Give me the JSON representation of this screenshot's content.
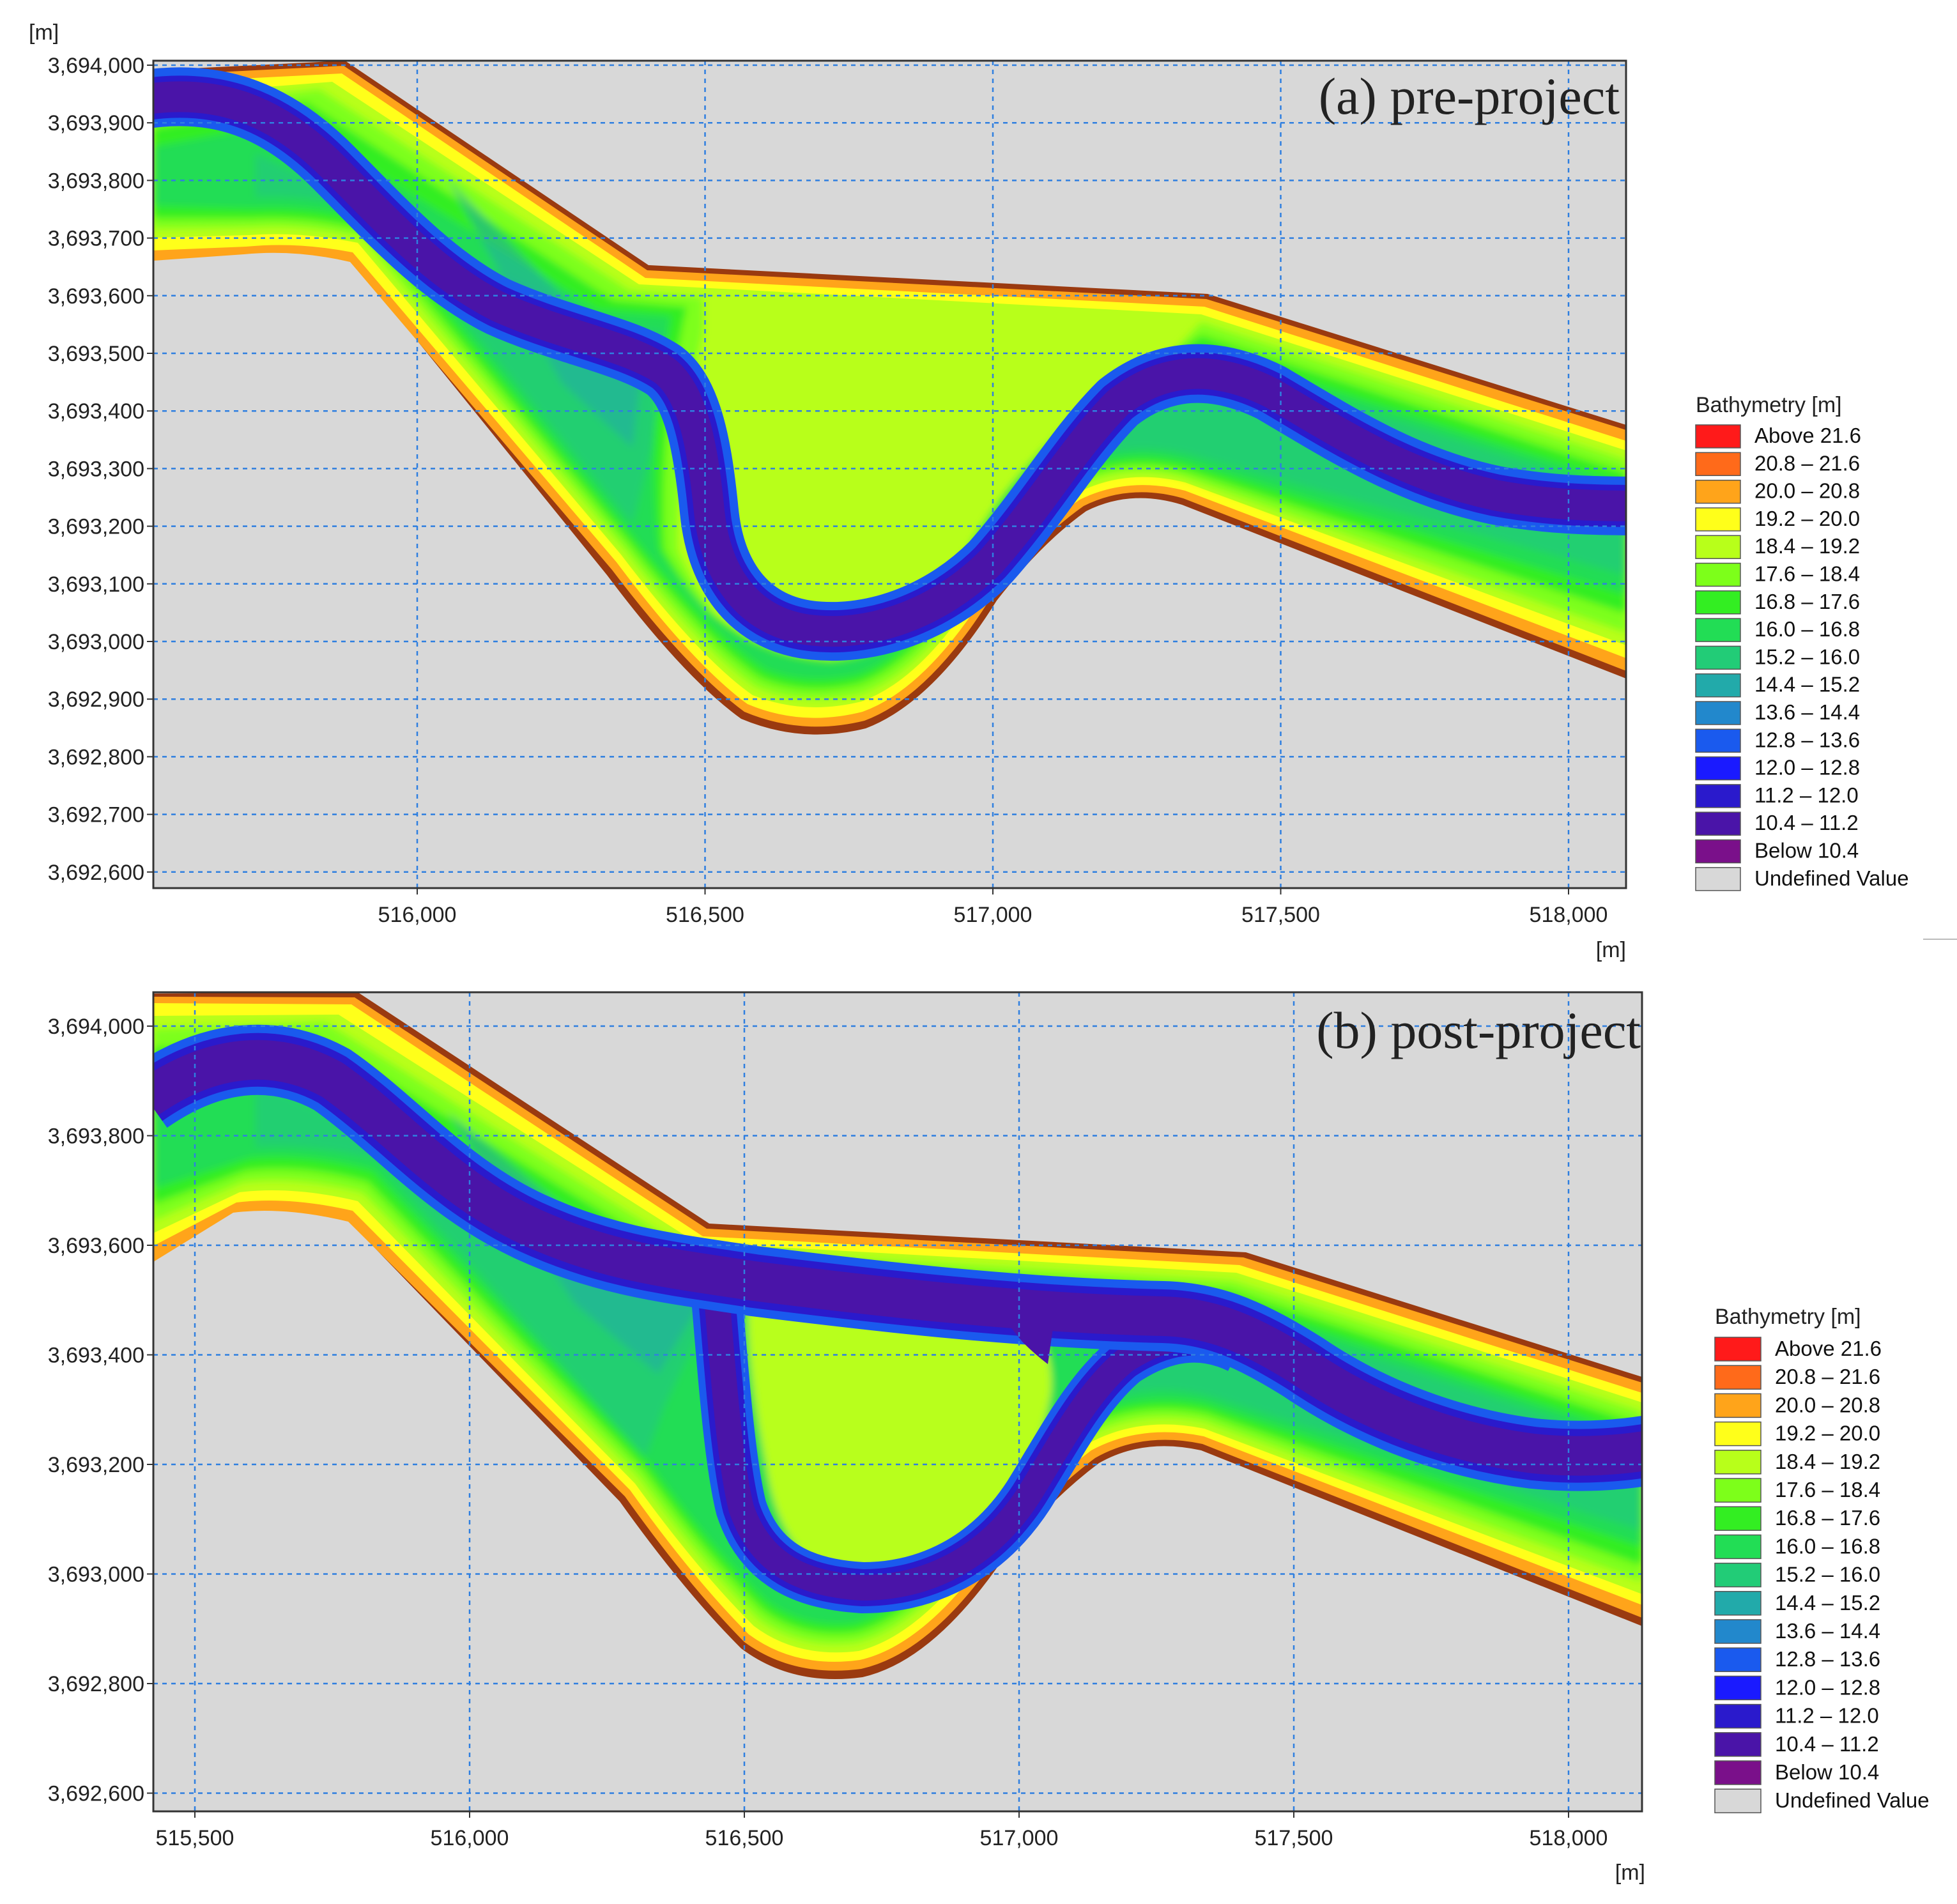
{
  "colors": {
    "undefined": "#d8d8d8",
    "grid": "#2f7fe0",
    "frame": "#333333",
    "classes": {
      "above_21_6": "#ff1a1a",
      "c20_8_21_6": "#ff6a1a",
      "c20_0_20_8": "#ffa41a",
      "c19_2_20_0": "#ffff1a",
      "c18_4_19_2": "#b8ff1a",
      "c17_6_18_4": "#7dff1a",
      "c16_8_17_6": "#33ee22",
      "c16_0_16_8": "#22dd55",
      "c15_2_16_0": "#22cc77",
      "c14_4_15_2": "#22aaaa",
      "c13_6_14_4": "#2288cc",
      "c12_8_13_6": "#1a5aee",
      "c12_0_12_8": "#1a1aff",
      "c11_2_12_0": "#2a1acc",
      "c10_4_11_2": "#4a14a8",
      "below_10_4": "#7a108a"
    }
  },
  "panels": [
    {
      "title": "(a) pre-project",
      "y_unit": "[m]",
      "x_unit": "[m]",
      "y_ticks": [
        "3,694,000",
        "3,693,900",
        "3,693,800",
        "3,693,700",
        "3,693,600",
        "3,693,500",
        "3,693,400",
        "3,693,300",
        "3,693,200",
        "3,693,100",
        "3,693,000",
        "3,692,900",
        "3,692,800",
        "3,692,700",
        "3,692,600"
      ],
      "x_ticks": [
        "516,000",
        "516,500",
        "517,000",
        "517,500",
        "518,000"
      ],
      "channel": "meander",
      "legend": {
        "title": "Bathymetry [m]",
        "items": [
          {
            "label": "Above 21.6",
            "color_key": "above_21_6"
          },
          {
            "label": "20.8 – 21.6",
            "color_key": "c20_8_21_6"
          },
          {
            "label": "20.0 – 20.8",
            "color_key": "c20_0_20_8"
          },
          {
            "label": "19.2 – 20.0",
            "color_key": "c19_2_20_0"
          },
          {
            "label": "18.4 – 19.2",
            "color_key": "c18_4_19_2"
          },
          {
            "label": "17.6 – 18.4",
            "color_key": "c17_6_18_4"
          },
          {
            "label": "16.8 – 17.6",
            "color_key": "c16_8_17_6"
          },
          {
            "label": "16.0 – 16.8",
            "color_key": "c16_0_16_8"
          },
          {
            "label": "15.2 – 16.0",
            "color_key": "c15_2_16_0"
          },
          {
            "label": "14.4 – 15.2",
            "color_key": "c14_4_15_2"
          },
          {
            "label": "13.6 – 14.4",
            "color_key": "c13_6_14_4"
          },
          {
            "label": "12.8 – 13.6",
            "color_key": "c12_8_13_6"
          },
          {
            "label": "12.0 – 12.8",
            "color_key": "c12_0_12_8"
          },
          {
            "label": "11.2 – 12.0",
            "color_key": "c11_2_12_0"
          },
          {
            "label": "10.4 – 11.2",
            "color_key": "c10_4_11_2"
          },
          {
            "label": "Below 10.4",
            "color_key": "below_10_4"
          },
          {
            "label": "Undefined Value",
            "color_key": "undefined"
          }
        ]
      }
    },
    {
      "title": "(b) post-project",
      "y_unit": "",
      "x_unit": "[m]",
      "y_ticks": [
        "3,694,000",
        "3,693,800",
        "3,693,600",
        "3,693,400",
        "3,693,200",
        "3,693,000",
        "3,692,800",
        "3,692,600"
      ],
      "x_ticks": [
        "515,500",
        "516,000",
        "516,500",
        "517,000",
        "517,500",
        "518,000"
      ],
      "channel": "cutoff",
      "legend": {
        "title": "Bathymetry [m]",
        "items": [
          {
            "label": "Above 21.6",
            "color_key": "above_21_6"
          },
          {
            "label": "20.8 – 21.6",
            "color_key": "c20_8_21_6"
          },
          {
            "label": "20.0 – 20.8",
            "color_key": "c20_0_20_8"
          },
          {
            "label": "19.2 – 20.0",
            "color_key": "c19_2_20_0"
          },
          {
            "label": "18.4 – 19.2",
            "color_key": "c18_4_19_2"
          },
          {
            "label": "17.6 – 18.4",
            "color_key": "c17_6_18_4"
          },
          {
            "label": "16.8 – 17.6",
            "color_key": "c16_8_17_6"
          },
          {
            "label": "16.0 – 16.8",
            "color_key": "c16_0_16_8"
          },
          {
            "label": "15.2 – 16.0",
            "color_key": "c15_2_16_0"
          },
          {
            "label": "14.4 – 15.2",
            "color_key": "c14_4_15_2"
          },
          {
            "label": "13.6 – 14.4",
            "color_key": "c13_6_14_4"
          },
          {
            "label": "12.8 – 13.6",
            "color_key": "c12_8_13_6"
          },
          {
            "label": "12.0 – 12.8",
            "color_key": "c12_0_12_8"
          },
          {
            "label": "11.2 – 12.0",
            "color_key": "c11_2_12_0"
          },
          {
            "label": "10.4 – 11.2",
            "color_key": "c10_4_11_2"
          },
          {
            "label": "Below 10.4",
            "color_key": "below_10_4"
          },
          {
            "label": "Undefined Value",
            "color_key": "undefined"
          }
        ]
      }
    }
  ]
}
